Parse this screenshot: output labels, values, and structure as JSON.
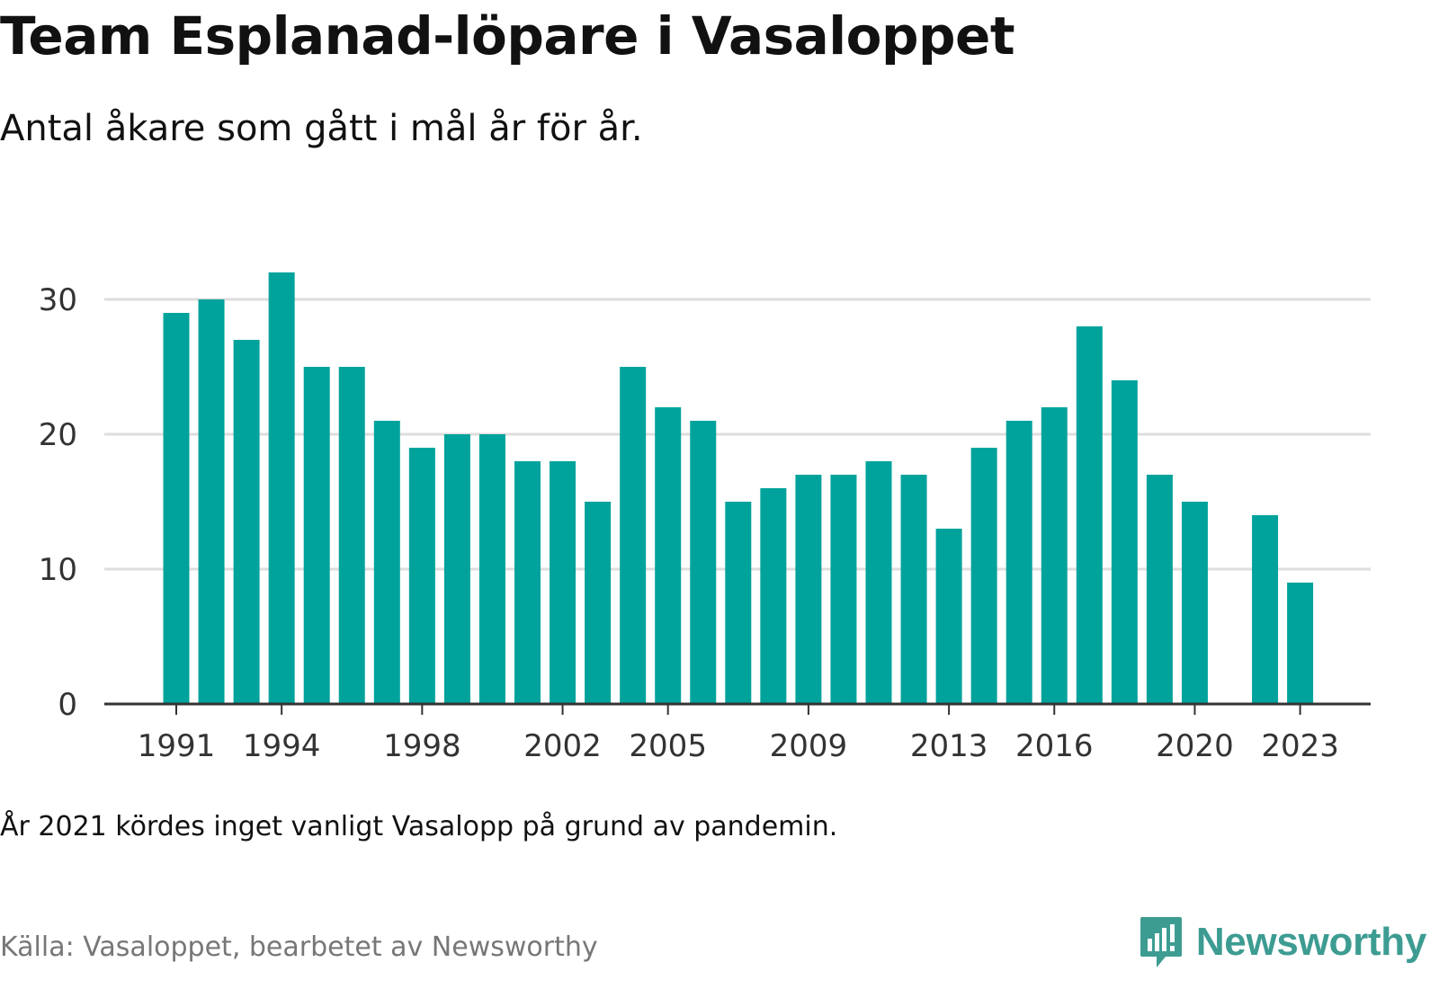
{
  "header": {
    "title": "Team Esplanad-löpare i Vasaloppet",
    "subtitle": "Antal åkare som gått i mål år för år."
  },
  "footer": {
    "note": "År 2021 kördes inget vanligt Vasalopp på grund av pandemin.",
    "source": "Källa: Vasaloppet, bearbetet av Newsworthy",
    "logo_text": "Newsworthy"
  },
  "colors": {
    "bar": "#00a39b",
    "gridline": "#dddddd",
    "axis": "#333333",
    "logo": "#3d9c92"
  },
  "chart_data": {
    "type": "bar",
    "categories": [
      1991,
      1992,
      1993,
      1994,
      1995,
      1996,
      1997,
      1998,
      1999,
      2000,
      2001,
      2002,
      2003,
      2004,
      2005,
      2006,
      2007,
      2008,
      2009,
      2010,
      2011,
      2012,
      2013,
      2014,
      2015,
      2016,
      2017,
      2018,
      2019,
      2020,
      2021,
      2022,
      2023
    ],
    "values": [
      29,
      30,
      27,
      32,
      25,
      25,
      21,
      19,
      20,
      20,
      18,
      18,
      15,
      25,
      22,
      21,
      15,
      16,
      17,
      17,
      18,
      17,
      13,
      19,
      21,
      22,
      28,
      24,
      17,
      15,
      null,
      14,
      9
    ],
    "x_tick_labels": [
      "1991",
      "1994",
      "1998",
      "2002",
      "2005",
      "2009",
      "2013",
      "2016",
      "2020",
      "2023"
    ],
    "y_ticks": [
      0,
      10,
      20,
      30
    ],
    "ylim": [
      0,
      33
    ],
    "grid": true,
    "legend": "none"
  }
}
